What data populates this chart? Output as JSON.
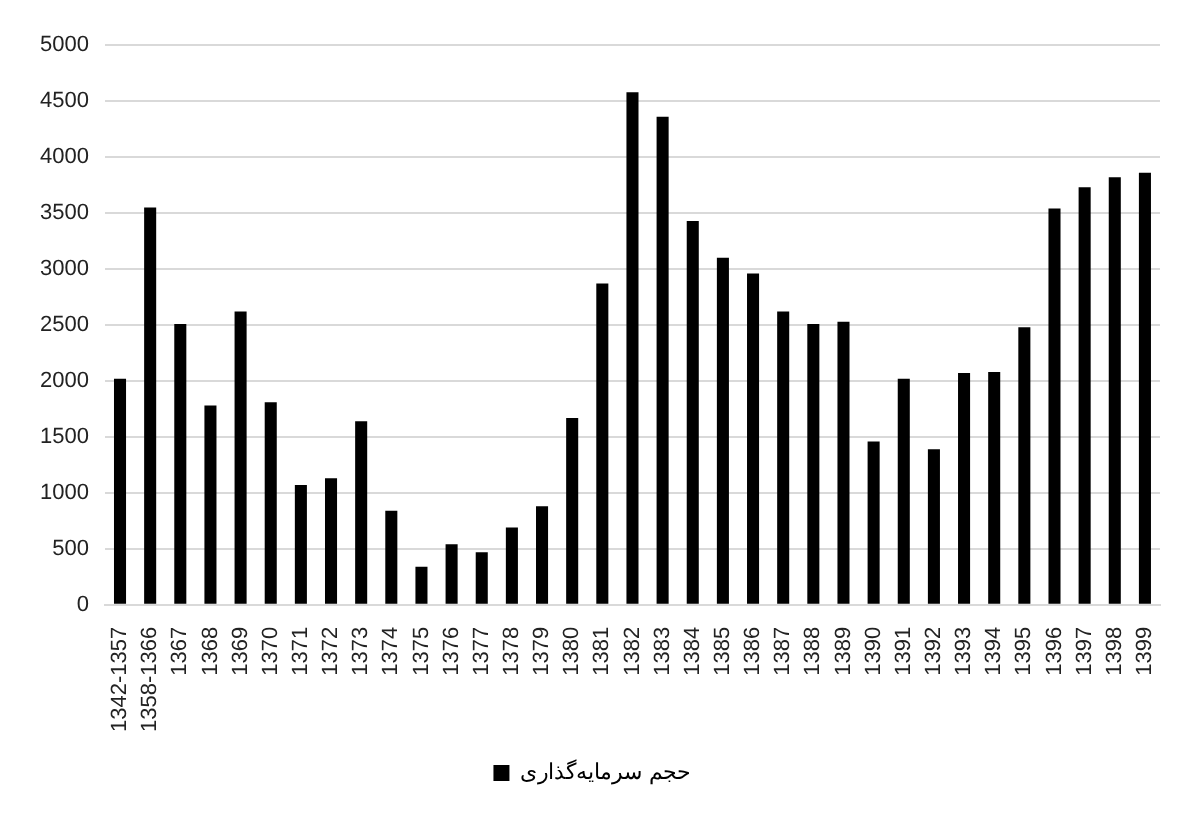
{
  "chart_data": {
    "type": "bar",
    "categories": [
      "1342-1357",
      "1358-1366",
      "1367",
      "1368",
      "1369",
      "1370",
      "1371",
      "1372",
      "1373",
      "1374",
      "1375",
      "1376",
      "1377",
      "1378",
      "1379",
      "1380",
      "1381",
      "1382",
      "1383",
      "1384",
      "1385",
      "1386",
      "1387",
      "1388",
      "1389",
      "1390",
      "1391",
      "1392",
      "1393",
      "1394",
      "1395",
      "1396",
      "1397",
      "1398",
      "1399"
    ],
    "series": [
      {
        "name": "حجم سرمایه‌گذاری",
        "color": "#000000",
        "values": [
          2020,
          3550,
          2510,
          1780,
          2620,
          1810,
          1070,
          1130,
          1640,
          840,
          340,
          540,
          470,
          690,
          880,
          1670,
          2870,
          4580,
          4360,
          3430,
          3100,
          2960,
          2620,
          2510,
          2530,
          1460,
          2020,
          1390,
          2070,
          2080,
          2480,
          3540,
          3730,
          3820,
          3860
        ]
      }
    ],
    "ylim": [
      0,
      5000
    ],
    "yticks": [
      0,
      500,
      1000,
      1500,
      2000,
      2500,
      3000,
      3500,
      4000,
      4500,
      5000
    ],
    "grid": "y",
    "legend": "bottom"
  }
}
